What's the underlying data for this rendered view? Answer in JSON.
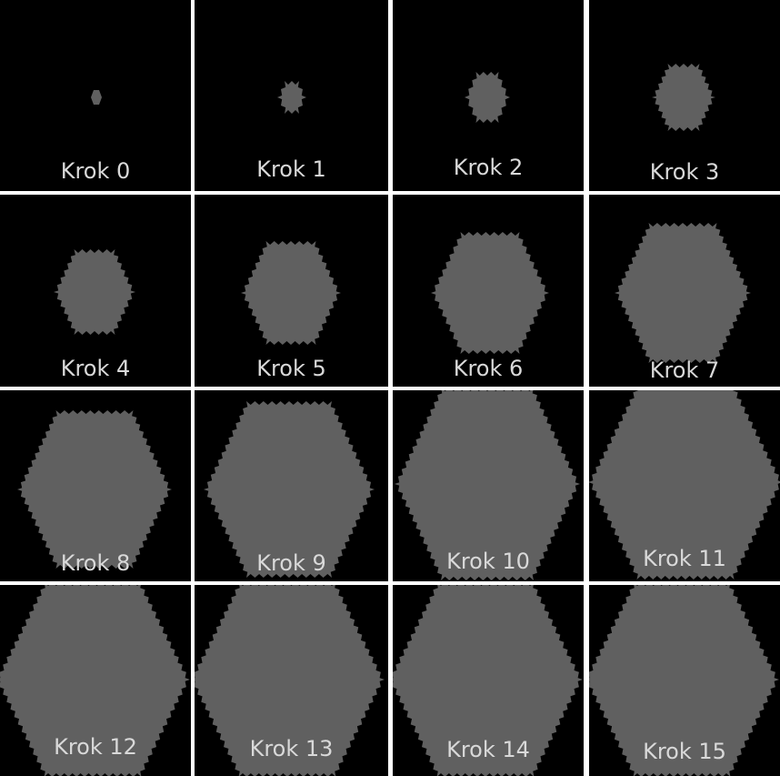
{
  "figure": {
    "background_color": "#000000",
    "separator_color": "#ffffff",
    "shape_color": "#606060",
    "label_color": "#d9d9d9",
    "shape": "hexagon",
    "panels": [
      {
        "label": "Krok 0",
        "step": 0
      },
      {
        "label": "Krok 1",
        "step": 1
      },
      {
        "label": "Krok 2",
        "step": 2
      },
      {
        "label": "Krok 3",
        "step": 3
      },
      {
        "label": "Krok 4",
        "step": 4
      },
      {
        "label": "Krok 5",
        "step": 5
      },
      {
        "label": "Krok 6",
        "step": 6
      },
      {
        "label": "Krok 7",
        "step": 7
      },
      {
        "label": "Krok 8",
        "step": 8
      },
      {
        "label": "Krok 9",
        "step": 9
      },
      {
        "label": "Krok 10",
        "step": 10
      },
      {
        "label": "Krok 11",
        "step": 11
      },
      {
        "label": "Krok 12",
        "step": 12
      },
      {
        "label": "Krok 13",
        "step": 13
      },
      {
        "label": "Krok 14",
        "step": 14
      },
      {
        "label": "Krok 15",
        "step": 15
      }
    ]
  }
}
